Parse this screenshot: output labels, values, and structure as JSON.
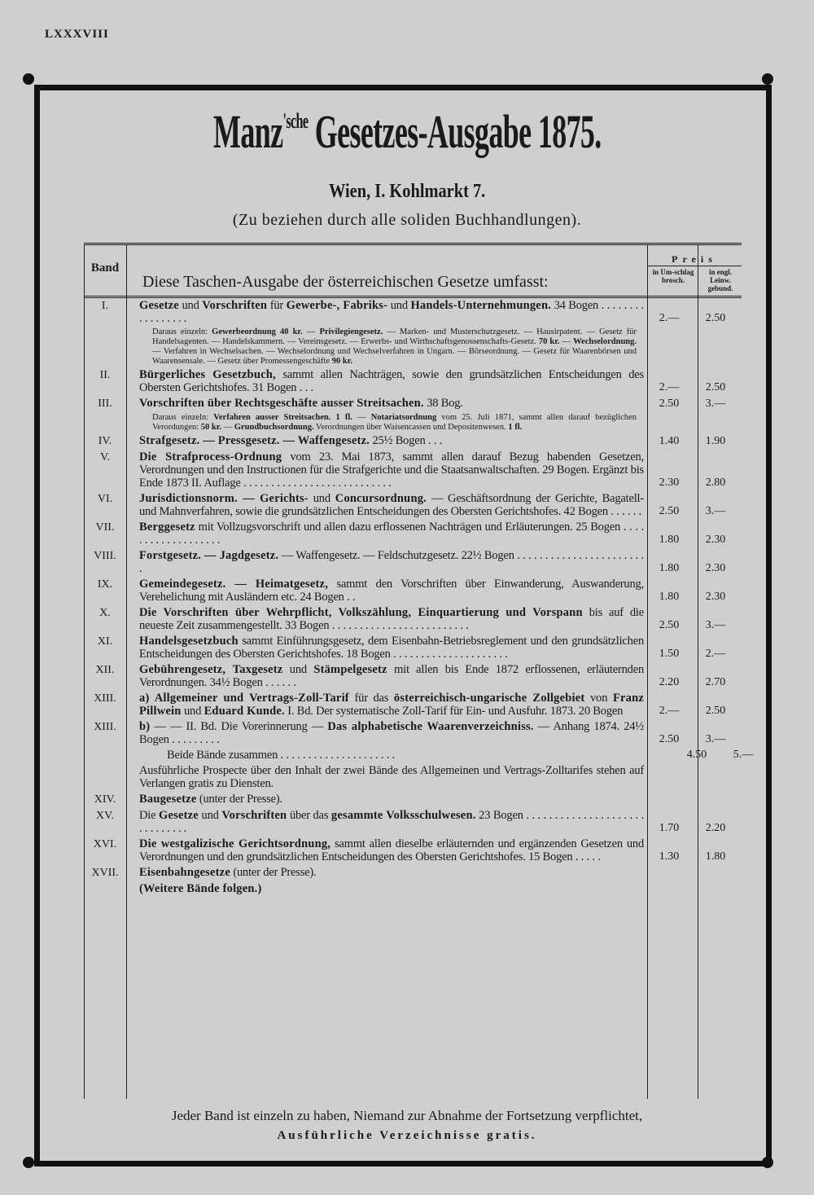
{
  "page_number": "LXXXVIII",
  "title": {
    "name": "Manz",
    "sup": "'sche",
    "rest": " Gesetzes-Ausgabe 1875."
  },
  "address": "Wien, I. Kohlmarkt 7.",
  "subtitle": "(Zu beziehen durch alle soliden Buchhandlungen).",
  "header": {
    "band": "Band",
    "intro_segments": [
      {
        "t": "Diese ",
        "b": false
      },
      {
        "t": "Taschen-Ausgabe der österreichischen Gesetze",
        "b": true
      },
      {
        "t": " umfasst:",
        "b": false
      }
    ],
    "preis": "Preis",
    "col1": "in Um-schlag brosch.",
    "col2": "in engl. Leinw. gebund."
  },
  "rows": [
    {
      "band": "I.",
      "segments": [
        {
          "t": "Gesetze",
          "b": true
        },
        {
          "t": " und ",
          "b": false
        },
        {
          "t": "Vorschriften",
          "b": true
        },
        {
          "t": " für ",
          "b": false
        },
        {
          "t": "Gewerbe-, Fabriks-",
          "b": true
        },
        {
          "t": " und ",
          "b": false
        },
        {
          "t": "Handels-Unternehmungen.",
          "b": true
        },
        {
          "t": " 34 Bogen . . . . . . . . . . . . . . . . .",
          "b": false
        }
      ],
      "p1": "2.—",
      "p2": "2.50",
      "note": [
        {
          "t": "Daraus einzeln: ",
          "b": false
        },
        {
          "t": "Gewerbeordnung 40 kr.",
          "b": true
        },
        {
          "t": " — ",
          "b": false
        },
        {
          "t": "Privilegiengesetz.",
          "b": true
        },
        {
          "t": " — Marken- und Musterschutzgesetz. — Hausirpatent. — Gesetz für Handelsagenten. — Handelskammern. — Vereinsgesetz. — Erwerbs- und Wirthschaftsgenossenschafts-Gesetz. ",
          "b": false
        },
        {
          "t": "70 kr.",
          "b": true
        },
        {
          "t": " — ",
          "b": false
        },
        {
          "t": "Wechselordnung.",
          "b": true
        },
        {
          "t": " — Verfahren in Wechselsachen. — Wechselordnung und Wechselverfahren in Ungarn. — Börseordnung. — Gesetz für Waarenbörsen und Waarensensale. — Gesetz über Promessengeschäfte ",
          "b": false
        },
        {
          "t": "90 kr.",
          "b": true
        }
      ]
    },
    {
      "band": "II.",
      "segments": [
        {
          "t": "Bürgerliches Gesetzbuch,",
          "b": true
        },
        {
          "t": " sammt allen Nachträgen, sowie den grundsätzlichen Entscheidungen des Obersten Gerichtshofes. 31 Bogen . . .",
          "b": false
        }
      ],
      "p1": "2.—",
      "p2": "2.50"
    },
    {
      "band": "III.",
      "segments": [
        {
          "t": "Vorschriften über Rechtsgeschäfte ausser Streitsachen.",
          "b": true
        },
        {
          "t": " 38 Bog.",
          "b": false
        }
      ],
      "p1": "2.50",
      "p2": "3.—",
      "note": [
        {
          "t": "Daraus einzeln: ",
          "b": false
        },
        {
          "t": "Verfahren ausser Streitsachen. 1 fl.",
          "b": true
        },
        {
          "t": " — ",
          "b": false
        },
        {
          "t": "Notariatsordnung",
          "b": true
        },
        {
          "t": " vom 25. Juli 1871, sammt allen darauf bezüglichen Verordungen: ",
          "b": false
        },
        {
          "t": "50 kr.",
          "b": true
        },
        {
          "t": " — ",
          "b": false
        },
        {
          "t": "Grundbuchsordnung.",
          "b": true
        },
        {
          "t": " Verordnungen über Waisencassen und Depositenwesen. ",
          "b": false
        },
        {
          "t": "1 fl.",
          "b": true
        }
      ]
    },
    {
      "band": "IV.",
      "segments": [
        {
          "t": "Strafgesetz. — Pressgesetz. — Waffengesetz.",
          "b": true
        },
        {
          "t": " 25½ Bogen . . .",
          "b": false
        }
      ],
      "p1": "1.40",
      "p2": "1.90"
    },
    {
      "band": "V.",
      "segments": [
        {
          "t": "Die Strafprocess-Ordnung",
          "b": true
        },
        {
          "t": " vom 23. Mai 1873, sammt allen darauf Bezug habenden Gesetzen, Verordnungen und den Instructionen für die Strafgerichte und die Staatsanwaltschaften. 29 Bogen. Ergänzt bis Ende 1873 II. Auflage . . . . . . . . . . . . . . . . . . . . . . . . . . .",
          "b": false
        }
      ],
      "p1": "2.30",
      "p2": "2.80"
    },
    {
      "band": "VI.",
      "segments": [
        {
          "t": "Jurisdictionsnorm. — Gerichts-",
          "b": true
        },
        {
          "t": " und ",
          "b": false
        },
        {
          "t": "Concursordnung.",
          "b": true
        },
        {
          "t": " — Geschäftsordnung der Gerichte, Bagatell- und Mahnverfahren, sowie die grundsätzlichen Entscheidungen des Obersten Gerichtshofes. 42 Bogen . . . . . .",
          "b": false
        }
      ],
      "p1": "2.50",
      "p2": "3.—"
    },
    {
      "band": "VII.",
      "segments": [
        {
          "t": "Berggesetz",
          "b": true
        },
        {
          "t": " mit Vollzugsvorschrift und allen dazu erflossenen Nachträgen und Erläuterungen. 25 Bogen . . . . . . . . . . . . . . . . . . .",
          "b": false
        }
      ],
      "p1": "1.80",
      "p2": "2.30"
    },
    {
      "band": "VIII.",
      "segments": [
        {
          "t": "Forstgesetz. — Jagdgesetz.",
          "b": true
        },
        {
          "t": " — Waffengesetz. — Feldschutzgesetz. 22½ Bogen . . . . . . . . . . . . . . . . . . . . . . . .",
          "b": false
        }
      ],
      "p1": "1.80",
      "p2": "2.30"
    },
    {
      "band": "IX.",
      "segments": [
        {
          "t": "Gemeindegesetz. — Heimatgesetz,",
          "b": true
        },
        {
          "t": " sammt den Vorschriften über Einwanderung, Auswanderung, Verehelichung mit Ausländern etc. 24 Bogen . .",
          "b": false
        }
      ],
      "p1": "1.80",
      "p2": "2.30"
    },
    {
      "band": "X.",
      "segments": [
        {
          "t": "Die Vorschriften über Wehrpflicht, Volkszählung, Einquartierung und Vorspann",
          "b": true
        },
        {
          "t": " bis auf die neueste Zeit zusammengestellt. 33 Bogen . . . . . . . . . . . . . . . . . . . . . . . . .",
          "b": false
        }
      ],
      "p1": "2.50",
      "p2": "3.—"
    },
    {
      "band": "XI.",
      "segments": [
        {
          "t": "Handelsgesetzbuch",
          "b": true
        },
        {
          "t": " sammt Einführungsgesetz, dem Eisenbahn-Betriebsreglement und den grundsätzlichen Entscheidungen des Obersten Gerichtshofes. 18 Bogen . . . . . . . . . . . . . . . . . . . . .",
          "b": false
        }
      ],
      "p1": "1.50",
      "p2": "2.—"
    },
    {
      "band": "XII.",
      "segments": [
        {
          "t": "Gebührengesetz, Taxgesetz",
          "b": true
        },
        {
          "t": " und ",
          "b": false
        },
        {
          "t": "Stämpelgesetz",
          "b": true
        },
        {
          "t": " mit allen bis Ende 1872 erflossenen, erläuternden Verordnungen. 34½ Bogen . . . . . .",
          "b": false
        }
      ],
      "p1": "2.20",
      "p2": "2.70"
    },
    {
      "band": "XIII.",
      "segments": [
        {
          "t": "a) Allgemeiner und Vertrags-Zoll-Tarif",
          "b": true
        },
        {
          "t": " für das ",
          "b": false
        },
        {
          "t": "österreichisch-ungarische Zollgebiet",
          "b": true
        },
        {
          "t": " von ",
          "b": false
        },
        {
          "t": "Franz Pillwein",
          "b": true
        },
        {
          "t": " und ",
          "b": false
        },
        {
          "t": "Eduard Kunde.",
          "b": true
        },
        {
          "t": " I. Bd. Der systematische Zoll-Tarif für Ein- und Ausfuhr. 1873. 20 Bogen",
          "b": false
        }
      ],
      "p1": "2.—",
      "p2": "2.50"
    },
    {
      "band": "XIII.",
      "segments": [
        {
          "t": "b)",
          "b": true
        },
        {
          "t": " — — II. Bd. Die Vorerinnerung — ",
          "b": false
        },
        {
          "t": "Das alphabetische Waarenverzeichniss.",
          "b": true
        },
        {
          "t": " — Anhang 1874. 24½ Bogen . . . . . . . . .",
          "b": false
        }
      ],
      "p1": "2.50",
      "p2": "3.—"
    },
    {
      "band": "",
      "indent": true,
      "segments": [
        {
          "t": "Beide Bände zusammen . . . . . . . . . . . . . . . . . . . . .",
          "b": false
        }
      ],
      "p1": "4.50",
      "p2": "5.—"
    },
    {
      "band": "",
      "center": true,
      "segments": [
        {
          "t": "Ausführliche Prospecte über den Inhalt der zwei Bände des Allgemeinen und Vertrags-Zolltarifes stehen auf Verlangen gratis zu Diensten.",
          "b": false
        }
      ],
      "p1": "",
      "p2": ""
    },
    {
      "band": "XIV.",
      "segments": [
        {
          "t": "Baugesetze",
          "b": true
        },
        {
          "t": " (unter der Presse).",
          "b": false
        }
      ],
      "p1": "",
      "p2": ""
    },
    {
      "band": "XV.",
      "segments": [
        {
          "t": "Die ",
          "b": false
        },
        {
          "t": "Gesetze",
          "b": true
        },
        {
          "t": " und ",
          "b": false
        },
        {
          "t": "Vorschriften",
          "b": true
        },
        {
          "t": " über das ",
          "b": false
        },
        {
          "t": "gesammte Volksschulwesen.",
          "b": true
        },
        {
          "t": " 23 Bogen . . . . . . . . . . . . . . . . . . . . . . . . . . . . . .",
          "b": false
        }
      ],
      "p1": "1.70",
      "p2": "2.20"
    },
    {
      "band": "XVI.",
      "segments": [
        {
          "t": "Die westgalizische Gerichtsordnung,",
          "b": true
        },
        {
          "t": " sammt allen dieselbe erläuternden und ergänzenden Gesetzen und Verordnungen und den grundsätzlichen Entscheidungen des Obersten Gerichtshofes. 15 Bogen . . . . .",
          "b": false
        }
      ],
      "p1": "1.30",
      "p2": "1.80"
    },
    {
      "band": "XVII.",
      "segments": [
        {
          "t": "Eisenbahngesetze",
          "b": true
        },
        {
          "t": " (unter der Presse).",
          "b": false
        }
      ],
      "p1": "",
      "p2": ""
    },
    {
      "band": "",
      "center": true,
      "segments": [
        {
          "t": "(Weitere Bände folgen.)",
          "b": true
        }
      ],
      "p1": "",
      "p2": ""
    }
  ],
  "footer": {
    "line1": "Jeder Band ist einzeln zu haben, Niemand zur Abnahme der Fortsetzung verpflichtet,",
    "line2": "Ausführliche Verzeichnisse gratis."
  }
}
